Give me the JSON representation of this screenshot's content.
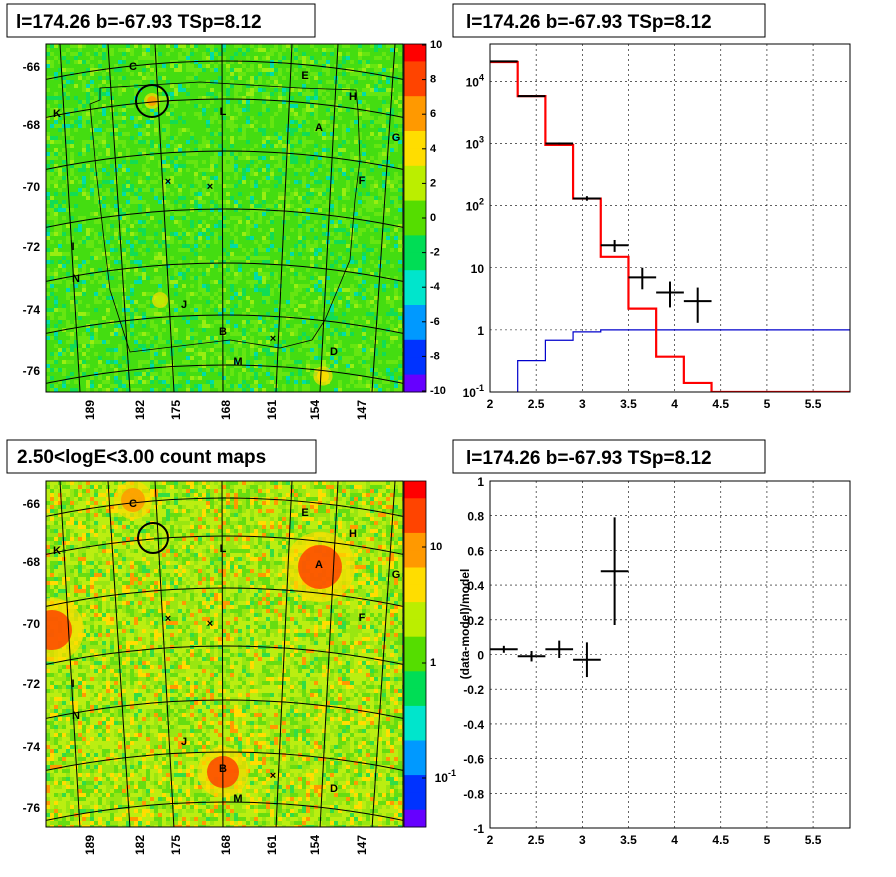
{
  "panels": {
    "p1": {
      "title": "l=174.26 b=-67.93 TSp=8.12"
    },
    "p2": {
      "title": "l=174.26 b=-67.93 TSp=8.12"
    },
    "p3": {
      "title": "2.50<logE<3.00 count maps"
    },
    "p4": {
      "title": "l=174.26 b=-67.93 TSp=8.12"
    }
  },
  "sky_map": {
    "y_ticks": [
      "-66",
      "-68",
      "-70",
      "-72",
      "-74",
      "-76"
    ],
    "x_ticks": [
      "189",
      "182",
      "175",
      "168",
      "161",
      "154",
      "147"
    ],
    "source_labels": [
      "C",
      "E",
      "H",
      "K",
      "L",
      "A",
      "G",
      "F",
      "I",
      "N",
      "J",
      "B",
      "D",
      "M"
    ]
  },
  "colorbars": {
    "residual": {
      "labels": [
        "10",
        "8",
        "6",
        "4",
        "2",
        "0",
        "-2",
        "-4",
        "-6",
        "-8",
        "-10"
      ],
      "colors": [
        "#ff0000",
        "#ff4400",
        "#ff9900",
        "#ffdd00",
        "#bbee00",
        "#55dd00",
        "#00dd55",
        "#00e5cc",
        "#0099ff",
        "#0033ff",
        "#6600ff"
      ]
    },
    "counts": {
      "labels": [
        "10",
        "1",
        "10^-1"
      ],
      "colors": [
        "#ff0000",
        "#ff4400",
        "#ff9900",
        "#ffdd00",
        "#bbee00",
        "#55dd00",
        "#00dd55",
        "#00e5cc",
        "#0099ff",
        "#0033ff",
        "#6600ff"
      ]
    }
  },
  "chart_data": [
    {
      "type": "line",
      "title": "l=174.26 b=-67.93 TSp=8.12",
      "log_y": true,
      "xlim": [
        2,
        5.9
      ],
      "ylim": [
        0.1,
        40000
      ],
      "grid": true,
      "x_ticks": [
        "2",
        "2.5",
        "3",
        "3.5",
        "4",
        "4.5",
        "5",
        "5.5"
      ],
      "y_ticks": [
        {
          "v": 0.1,
          "label": "10^-1"
        },
        {
          "v": 1,
          "label": "1"
        },
        {
          "v": 10,
          "label": "10"
        },
        {
          "v": 100,
          "label": "10^2"
        },
        {
          "v": 1000,
          "label": "10^3"
        },
        {
          "v": 10000,
          "label": "10^4"
        }
      ],
      "data_points": [
        {
          "x": 2.15,
          "xerr": 0.15,
          "y": 21000,
          "ylo": 20500,
          "yhi": 21500
        },
        {
          "x": 2.45,
          "xerr": 0.15,
          "y": 5800,
          "ylo": 5600,
          "yhi": 6000
        },
        {
          "x": 2.75,
          "xerr": 0.15,
          "y": 1000,
          "ylo": 960,
          "yhi": 1040
        },
        {
          "x": 3.05,
          "xerr": 0.15,
          "y": 130,
          "ylo": 120,
          "yhi": 142
        },
        {
          "x": 3.35,
          "xerr": 0.15,
          "y": 23,
          "ylo": 18,
          "yhi": 28
        },
        {
          "x": 3.65,
          "xerr": 0.15,
          "y": 7,
          "ylo": 4.5,
          "yhi": 10
        },
        {
          "x": 3.95,
          "xerr": 0.15,
          "y": 4,
          "ylo": 2.3,
          "yhi": 6
        },
        {
          "x": 4.25,
          "xerr": 0.15,
          "y": 2.9,
          "ylo": 1.3,
          "yhi": 4.8
        }
      ],
      "model_total": {
        "color": "#ff0000",
        "edges": [
          2.0,
          2.3,
          2.6,
          2.9,
          3.2,
          3.5,
          3.8,
          4.1,
          4.4,
          5.9
        ],
        "values": [
          20500,
          5800,
          950,
          130,
          15,
          2.2,
          0.37,
          0.14,
          0.1
        ]
      },
      "model_source": {
        "color": "#0000cc",
        "edges": [
          2.0,
          2.3,
          2.6,
          2.9,
          3.2,
          5.9
        ],
        "values": [
          0.09,
          0.32,
          0.68,
          0.93,
          1.0
        ]
      }
    },
    {
      "type": "scatter",
      "title": "l=174.26 b=-67.93 TSp=8.12",
      "ylabel": "(data-model)/model",
      "xlim": [
        2,
        5.9
      ],
      "ylim": [
        -1,
        1
      ],
      "grid": true,
      "x_ticks": [
        "2",
        "2.5",
        "3",
        "3.5",
        "4",
        "4.5",
        "5",
        "5.5"
      ],
      "y_ticks": [
        "1",
        "0.8",
        "0.6",
        "0.4",
        "0.2",
        "0",
        "-0.2",
        "-0.4",
        "-0.6",
        "-0.8",
        "-1"
      ],
      "points": [
        {
          "x": 2.15,
          "xerr": 0.15,
          "y": 0.03,
          "yerr": 0.02
        },
        {
          "x": 2.45,
          "xerr": 0.15,
          "y": -0.01,
          "yerr": 0.03
        },
        {
          "x": 2.75,
          "xerr": 0.15,
          "y": 0.03,
          "yerr": 0.05
        },
        {
          "x": 3.05,
          "xerr": 0.15,
          "y": -0.03,
          "yerr": 0.1
        },
        {
          "x": 3.35,
          "xerr": 0.15,
          "y": 0.48,
          "yerr": 0.31
        }
      ]
    }
  ]
}
